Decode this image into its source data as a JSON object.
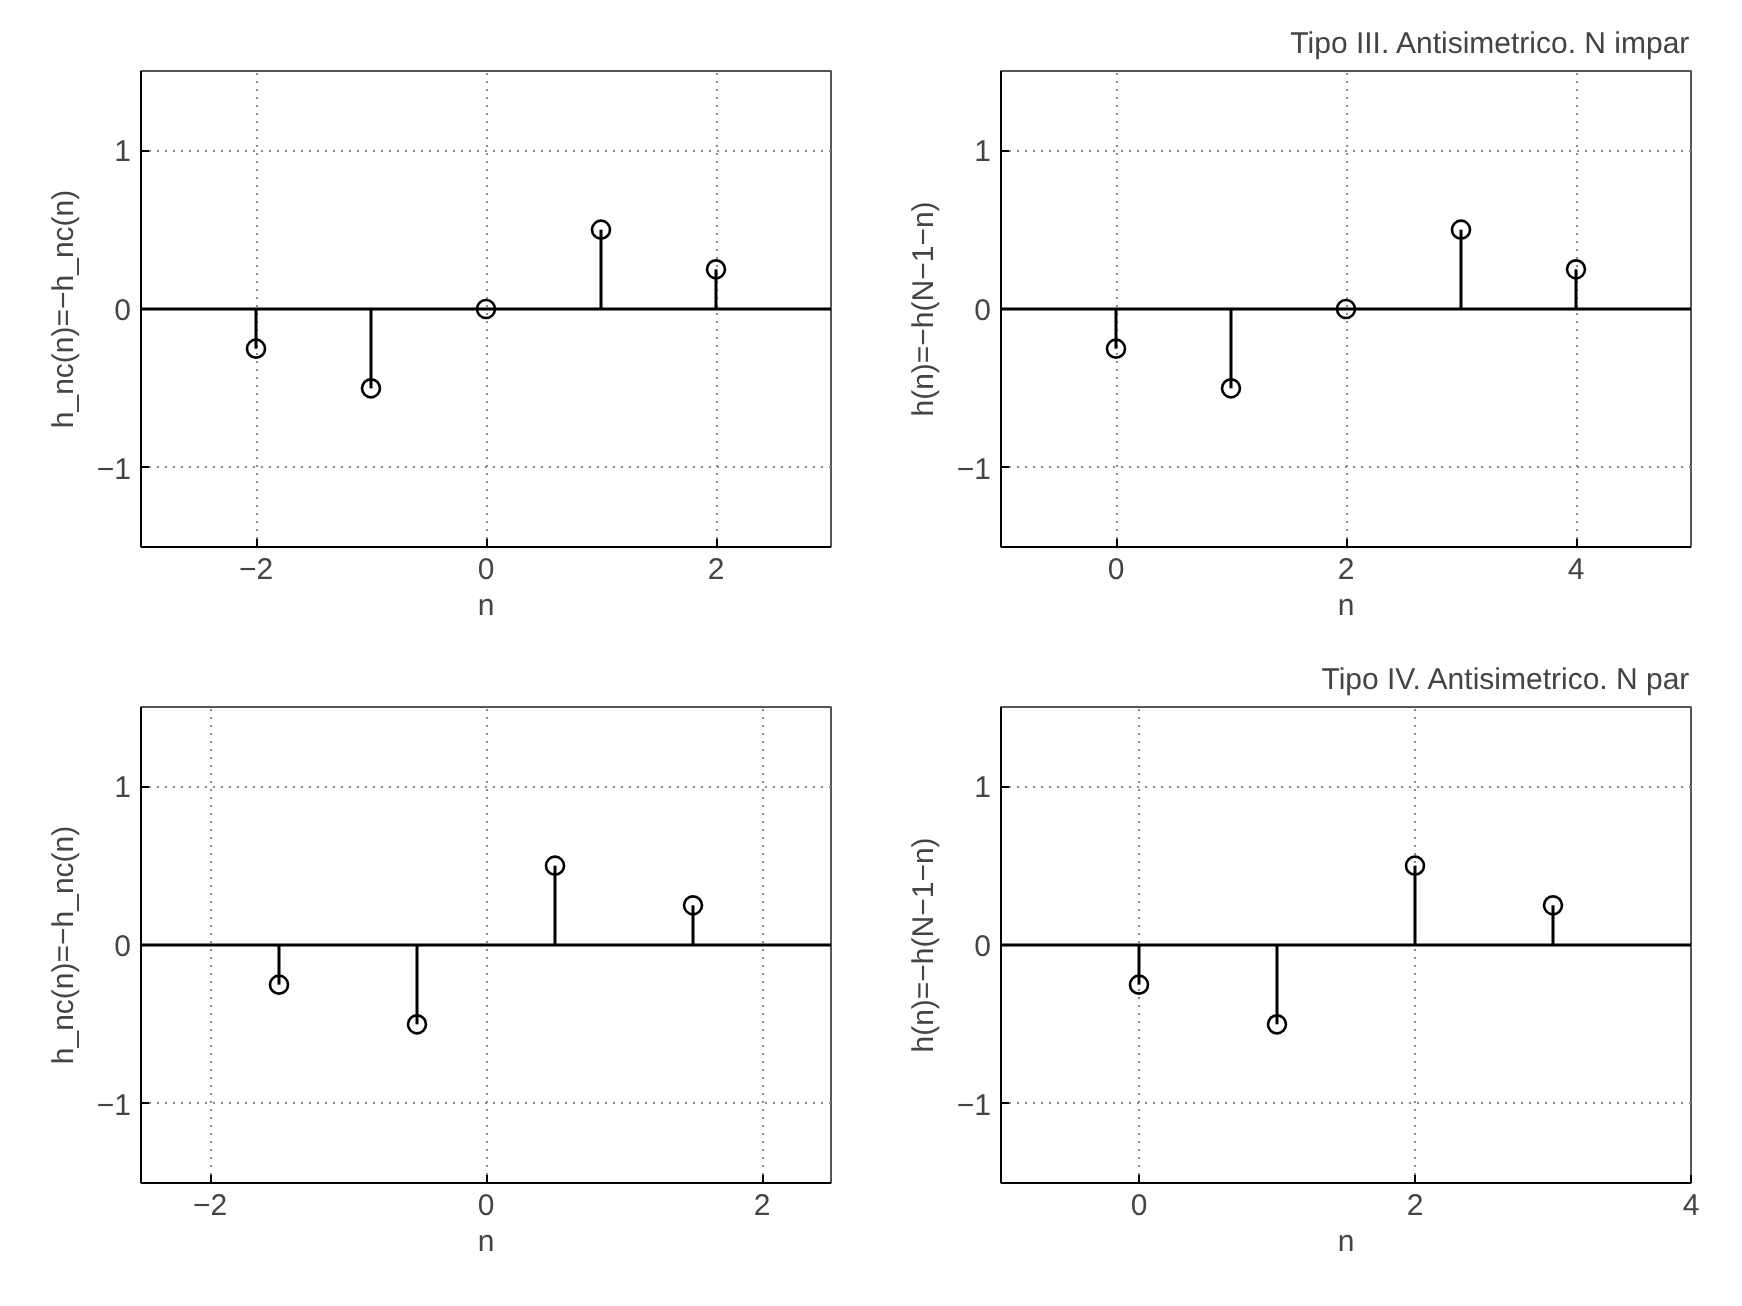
{
  "chart_data": [
    {
      "type": "lollipop",
      "xlabel": "n",
      "ylabel": "h_nc(n)=−h_nc(n)",
      "x": [
        -2,
        -1,
        0,
        1,
        2
      ],
      "values": [
        -0.25,
        -0.5,
        0,
        0.5,
        0.25
      ],
      "color": "#000000",
      "marker": "circle",
      "xlim": [
        -3,
        3
      ],
      "xticks": [
        -2,
        0,
        2
      ],
      "ylim": [
        -1.5,
        1.5
      ],
      "yticks": [
        -1,
        0,
        1
      ],
      "grid": true
    },
    {
      "type": "lollipop",
      "title": "Tipo III. Antisimetrico. N impar",
      "xlabel": "n",
      "ylabel": "h(n)=−h(N−1−n)",
      "x": [
        0,
        1,
        2,
        3,
        4
      ],
      "values": [
        -0.25,
        -0.5,
        0,
        0.5,
        0.25
      ],
      "color": "#000000",
      "marker": "circle",
      "xlim": [
        -1,
        5
      ],
      "xticks": [
        0,
        2,
        4
      ],
      "ylim": [
        -1.5,
        1.5
      ],
      "yticks": [
        -1,
        0,
        1
      ],
      "grid": true
    },
    {
      "type": "lollipop",
      "xlabel": "n",
      "ylabel": "h_nc(n)=−h_nc(n)",
      "x": [
        -1.5,
        -0.5,
        0.5,
        1.5
      ],
      "values": [
        -0.25,
        -0.5,
        0.5,
        0.25
      ],
      "color": "#000000",
      "marker": "circle",
      "xlim": [
        -2.5,
        2.5
      ],
      "xticks": [
        -2,
        0,
        2
      ],
      "ylim": [
        -1.5,
        1.5
      ],
      "yticks": [
        -1,
        0,
        1
      ],
      "grid": true
    },
    {
      "type": "lollipop",
      "title": "Tipo IV. Antisimetrico. N par",
      "xlabel": "n",
      "ylabel": "h(n)=−h(N−1−n)",
      "x": [
        0,
        1,
        2,
        3
      ],
      "values": [
        -0.25,
        -0.5,
        0.5,
        0.25
      ],
      "color": "#000000",
      "marker": "circle",
      "xlim": [
        -1,
        4
      ],
      "xticks": [
        0,
        2,
        4
      ],
      "ylim": [
        -1.5,
        1.5
      ],
      "yticks": [
        -1,
        0,
        1
      ],
      "grid": true
    }
  ]
}
